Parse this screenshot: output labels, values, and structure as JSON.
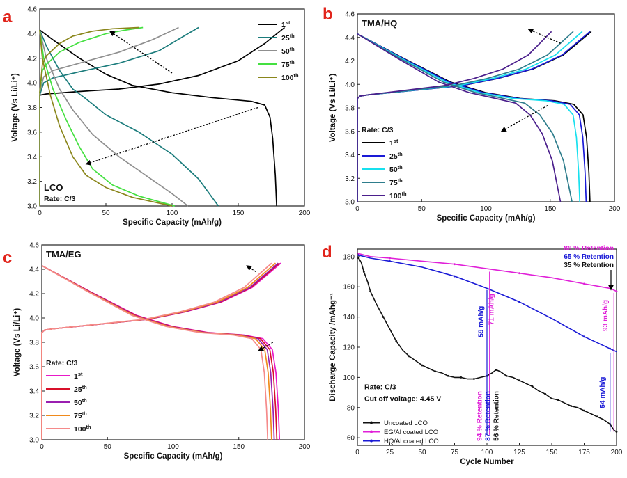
{
  "chart_data": [
    {
      "type": "line",
      "panel_label": "a",
      "title": "LCO",
      "rate_text": "Rate: C/3",
      "xlabel": "Specific Capacity (mAh/g)",
      "ylabel": "Voltage (Vs Li/Li⁺)",
      "xlim": [
        0,
        200
      ],
      "ylim": [
        3.0,
        4.6
      ],
      "xticks": [
        "0",
        "50",
        "100",
        "150",
        "200"
      ],
      "yticks": [
        "3.0",
        "3.2",
        "3.4",
        "3.6",
        "3.8",
        "4.0",
        "4.2",
        "4.4",
        "4.6"
      ],
      "legend_position": "top-right",
      "arrows": [
        [
          [
            100,
            4.08
          ],
          [
            53,
            4.42
          ]
        ],
        [
          [
            165,
            3.8
          ],
          [
            35,
            3.34
          ]
        ]
      ],
      "series": [
        {
          "name": "1st",
          "base": "1",
          "sup": "st",
          "color": "#000000",
          "charge": [
            [
              0,
              3.9
            ],
            [
              5,
              3.91
            ],
            [
              30,
              3.93
            ],
            [
              60,
              3.95
            ],
            [
              90,
              3.99
            ],
            [
              120,
              4.06
            ],
            [
              150,
              4.18
            ],
            [
              170,
              4.32
            ],
            [
              185,
              4.45
            ]
          ],
          "discharge": [
            [
              0,
              4.43
            ],
            [
              10,
              4.35
            ],
            [
              30,
              4.2
            ],
            [
              50,
              4.07
            ],
            [
              70,
              3.98
            ],
            [
              100,
              3.92
            ],
            [
              130,
              3.88
            ],
            [
              160,
              3.85
            ],
            [
              170,
              3.82
            ],
            [
              174,
              3.72
            ],
            [
              176,
              3.55
            ],
            [
              178,
              3.25
            ],
            [
              179,
              3.0
            ]
          ]
        },
        {
          "name": "25th",
          "base": "25",
          "sup": "th",
          "color": "#1b7c7c",
          "charge": [
            [
              0,
              3.9
            ],
            [
              3,
              4.0
            ],
            [
              10,
              4.04
            ],
            [
              30,
              4.09
            ],
            [
              60,
              4.16
            ],
            [
              90,
              4.26
            ],
            [
              120,
              4.45
            ]
          ],
          "discharge": [
            [
              0,
              4.43
            ],
            [
              5,
              4.3
            ],
            [
              15,
              4.1
            ],
            [
              25,
              3.95
            ],
            [
              35,
              3.87
            ],
            [
              50,
              3.74
            ],
            [
              75,
              3.6
            ],
            [
              100,
              3.42
            ],
            [
              120,
              3.22
            ],
            [
              135,
              3.0
            ]
          ]
        },
        {
          "name": "50th",
          "base": "50",
          "sup": "th",
          "color": "#8f8f8f",
          "charge": [
            [
              0,
              3.92
            ],
            [
              3,
              4.05
            ],
            [
              10,
              4.1
            ],
            [
              30,
              4.16
            ],
            [
              60,
              4.25
            ],
            [
              85,
              4.35
            ],
            [
              95,
              4.4
            ],
            [
              105,
              4.45
            ]
          ],
          "discharge": [
            [
              0,
              4.43
            ],
            [
              5,
              4.2
            ],
            [
              15,
              3.95
            ],
            [
              25,
              3.78
            ],
            [
              40,
              3.58
            ],
            [
              60,
              3.4
            ],
            [
              80,
              3.25
            ],
            [
              100,
              3.1
            ],
            [
              112,
              3.0
            ]
          ]
        },
        {
          "name": "75th",
          "base": "75",
          "sup": "th",
          "color": "#44e040",
          "charge": [
            [
              0,
              3.92
            ],
            [
              2,
              4.1
            ],
            [
              5,
              4.15
            ],
            [
              15,
              4.25
            ],
            [
              30,
              4.33
            ],
            [
              50,
              4.4
            ],
            [
              65,
              4.43
            ],
            [
              78,
              4.45
            ]
          ],
          "discharge": [
            [
              0,
              4.43
            ],
            [
              3,
              4.2
            ],
            [
              10,
              3.95
            ],
            [
              20,
              3.7
            ],
            [
              30,
              3.48
            ],
            [
              40,
              3.3
            ],
            [
              55,
              3.17
            ],
            [
              75,
              3.08
            ],
            [
              102,
              3.0
            ]
          ]
        },
        {
          "name": "100th",
          "base": "100",
          "sup": "th",
          "color": "#8a861b",
          "charge": [
            [
              0,
              3.92
            ],
            [
              2,
              4.15
            ],
            [
              5,
              4.22
            ],
            [
              15,
              4.32
            ],
            [
              25,
              4.38
            ],
            [
              40,
              4.42
            ],
            [
              55,
              4.44
            ],
            [
              75,
              4.45
            ]
          ],
          "discharge": [
            [
              0,
              4.43
            ],
            [
              2,
              4.2
            ],
            [
              8,
              3.9
            ],
            [
              15,
              3.65
            ],
            [
              25,
              3.4
            ],
            [
              35,
              3.25
            ],
            [
              50,
              3.15
            ],
            [
              70,
              3.07
            ],
            [
              100,
              3.0
            ]
          ]
        }
      ]
    },
    {
      "type": "line",
      "panel_label": "b",
      "title": "TMA/HQ",
      "rate_text": "Rate: C/3",
      "xlabel": "Specific Capacity (mAh/g)",
      "ylabel": "Voltage (Vs Li/Li⁺)",
      "xlim": [
        0,
        200
      ],
      "ylim": [
        3.0,
        4.6
      ],
      "xticks": [
        "0",
        "50",
        "100",
        "150",
        "200"
      ],
      "yticks": [
        "3.0",
        "3.2",
        "3.4",
        "3.6",
        "3.8",
        "4.0",
        "4.2",
        "4.4",
        "4.6"
      ],
      "legend_position": "bottom-left",
      "arrows": [
        [
          [
            158,
            4.35
          ],
          [
            133,
            4.47
          ]
        ],
        [
          [
            148,
            3.82
          ],
          [
            112,
            3.6
          ]
        ]
      ],
      "series": [
        {
          "name": "1st",
          "base": "1",
          "sup": "st",
          "color": "#000000",
          "cmax": 182,
          "dmax": 181
        },
        {
          "name": "25th",
          "base": "25",
          "sup": "th",
          "color": "#1a1ad6",
          "cmax": 181,
          "dmax": 178
        },
        {
          "name": "50th",
          "base": "50",
          "sup": "th",
          "color": "#17e0ee",
          "cmax": 175,
          "dmax": 173
        },
        {
          "name": "75th",
          "base": "75",
          "sup": "th",
          "color": "#2e7d8c",
          "cmax": 168,
          "dmax": 167
        },
        {
          "name": "100th",
          "base": "100",
          "sup": "th",
          "color": "#4b1f8c",
          "cmax": 151,
          "dmax": 158
        }
      ]
    },
    {
      "type": "line",
      "panel_label": "c",
      "title": "TMA/EG",
      "rate_text": "Rate: C/3",
      "xlabel": "Specific Capacity (mAh/g)",
      "ylabel": "Voltage (Vs Li/Li⁺)",
      "xlim": [
        0,
        200
      ],
      "ylim": [
        3.0,
        4.6
      ],
      "xticks": [
        "0",
        "50",
        "100",
        "150",
        "200"
      ],
      "yticks": [
        "3.0",
        "3.2",
        "3.4",
        "3.6",
        "3.8",
        "4.0",
        "4.2",
        "4.4",
        "4.6"
      ],
      "legend_position": "bottom-left",
      "arrows": [
        [
          [
            163,
            4.38
          ],
          [
            156,
            4.43
          ]
        ],
        [
          [
            176,
            3.8
          ],
          [
            165,
            3.73
          ]
        ]
      ],
      "series": [
        {
          "name": "1st",
          "base": "1",
          "sup": "st",
          "color": "#e819c8",
          "cmax": 182,
          "dmax": 181
        },
        {
          "name": "25th",
          "base": "25",
          "sup": "th",
          "color": "#d8102a",
          "cmax": 181,
          "dmax": 179
        },
        {
          "name": "50th",
          "base": "50",
          "sup": "th",
          "color": "#9a1fb0",
          "cmax": 180,
          "dmax": 177
        },
        {
          "name": "75th",
          "base": "75",
          "sup": "th",
          "color": "#f08a1c",
          "cmax": 178,
          "dmax": 175
        },
        {
          "name": "100th",
          "base": "100",
          "sup": "th",
          "color": "#f58a8a",
          "cmax": 175,
          "dmax": 172
        }
      ]
    },
    {
      "type": "line",
      "panel_label": "d",
      "xlabel": "Cycle Number",
      "ylabel": "Discharge Capacity /mAhg⁻¹",
      "xlim": [
        0,
        200
      ],
      "ylim": [
        55,
        185
      ],
      "xticks": [
        "0",
        "25",
        "50",
        "75",
        "100",
        "125",
        "150",
        "175",
        "200"
      ],
      "yticks": [
        "60",
        "80",
        "100",
        "120",
        "140",
        "160",
        "180"
      ],
      "legend_position": "bottom-left",
      "info_lines": [
        "Rate: C/3",
        "Cut off voltage: 4.45 V"
      ],
      "retention_top": [
        {
          "text": "86 % Retention",
          "color": "#e020d8"
        },
        {
          "text": "65 % Retention",
          "color": "#1a1ad6"
        },
        {
          "text": "35 % Retention",
          "color": "#111111"
        }
      ],
      "retention_side": [
        {
          "text": "94 % Retention",
          "color": "#e020d8"
        },
        {
          "text": "87 % Retention",
          "color": "#1a1ad6"
        },
        {
          "text": "56 % Retention",
          "color": "#111111"
        }
      ],
      "annotations": [
        {
          "text": "59 mAh/g",
          "color": "#1a1ad6"
        },
        {
          "text": "71 mAh/g",
          "color": "#e020d8"
        },
        {
          "text": "93 mAh/g",
          "color": "#e020d8"
        },
        {
          "text": "54 mAh/g",
          "color": "#1a1ad6"
        }
      ],
      "series": [
        {
          "name": "Uncoated LCO",
          "color": "#111111",
          "points": [
            [
              1,
              179
            ],
            [
              3,
              176
            ],
            [
              5,
              170
            ],
            [
              8,
              163
            ],
            [
              10,
              157
            ],
            [
              15,
              148
            ],
            [
              20,
              140
            ],
            [
              25,
              132
            ],
            [
              30,
              124
            ],
            [
              35,
              118
            ],
            [
              40,
              114
            ],
            [
              45,
              111
            ],
            [
              50,
              108
            ],
            [
              55,
              106
            ],
            [
              60,
              104
            ],
            [
              65,
              103
            ],
            [
              70,
              101
            ],
            [
              75,
              100
            ],
            [
              80,
              100
            ],
            [
              85,
              99
            ],
            [
              90,
              99
            ],
            [
              95,
              100
            ],
            [
              100,
              101
            ],
            [
              104,
              103
            ],
            [
              107,
              105
            ],
            [
              110,
              104
            ],
            [
              115,
              101
            ],
            [
              120,
              100
            ],
            [
              125,
              98
            ],
            [
              130,
              96
            ],
            [
              135,
              94
            ],
            [
              140,
              91
            ],
            [
              145,
              89
            ],
            [
              150,
              86
            ],
            [
              155,
              85
            ],
            [
              160,
              83
            ],
            [
              165,
              81
            ],
            [
              170,
              80
            ],
            [
              175,
              78
            ],
            [
              180,
              76
            ],
            [
              185,
              74
            ],
            [
              190,
              72
            ],
            [
              195,
              69
            ],
            [
              198,
              65
            ],
            [
              200,
              64
            ]
          ]
        },
        {
          "name": "EG/Al coated LCO",
          "color": "#e020d8",
          "points": [
            [
              1,
              182
            ],
            [
              10,
              180
            ],
            [
              25,
              179
            ],
            [
              50,
              177
            ],
            [
              75,
              175
            ],
            [
              100,
              172
            ],
            [
              125,
              169
            ],
            [
              150,
              166
            ],
            [
              175,
              162
            ],
            [
              195,
              159
            ],
            [
              200,
              157
            ]
          ]
        },
        {
          "name": "HQ/Al coated LCO",
          "color": "#1a1ad6",
          "points": [
            [
              1,
              181
            ],
            [
              10,
              179
            ],
            [
              25,
              177
            ],
            [
              50,
              173
            ],
            [
              75,
              167
            ],
            [
              100,
              159
            ],
            [
              125,
              150
            ],
            [
              150,
              139
            ],
            [
              175,
              127
            ],
            [
              190,
              121
            ],
            [
              195,
              119
            ],
            [
              200,
              117
            ]
          ]
        }
      ]
    }
  ]
}
